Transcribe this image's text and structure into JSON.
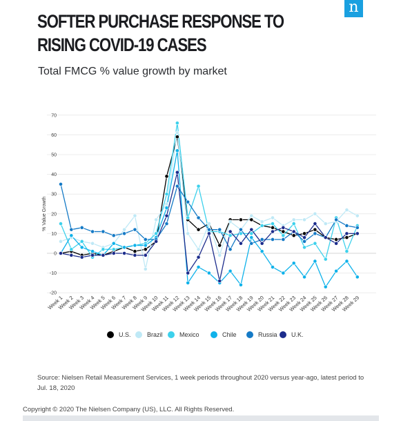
{
  "header": {
    "title": "SOFTER PURCHASE RESPONSE TO RISING COVID-19 CASES",
    "subtitle": "Total FMCG % value growth by market",
    "logo_letter": "n",
    "logo_color": "#1aa0e0"
  },
  "chart_data": {
    "type": "line",
    "title": "",
    "xlabel": "",
    "ylabel": "% Value Growth",
    "ylim": [
      -20,
      70
    ],
    "yticks": [
      -20,
      -10,
      0,
      10,
      20,
      30,
      40,
      50,
      60,
      70
    ],
    "ytick_labels": [
      "-20",
      "-10",
      "0",
      "10",
      "20",
      "30",
      "40",
      "50",
      "60",
      "70"
    ],
    "grid": "horizontal",
    "legend_position": "bottom",
    "categories": [
      "Week 1",
      "Week 2",
      "Week 3",
      "Week 4",
      "Week 5",
      "Week 6",
      "Week 7",
      "Week 8",
      "Week 9",
      "Week 10",
      "Week 11",
      "Week 12",
      "Week 13",
      "Week 14",
      "Week 15",
      "Week 16",
      "Week 17",
      "Week 18",
      "Week 19",
      "Week 20",
      "Week 21",
      "Week 22",
      "Week 23",
      "Week 24",
      "Week 25",
      "Week 26",
      "Week 27",
      "Week 28",
      "Week 29"
    ],
    "series": [
      {
        "name": "U.S.",
        "color": "#000000",
        "values": [
          0,
          1,
          -1,
          0,
          -1,
          1,
          3,
          1,
          2,
          6,
          39,
          59,
          17,
          12,
          15,
          4,
          17,
          17,
          17,
          14,
          13,
          11,
          9,
          10,
          12,
          8,
          7,
          8,
          10
        ]
      },
      {
        "name": "Brazil",
        "color": "#bfe9f6",
        "values": [
          6,
          8,
          6,
          5,
          3,
          5,
          12,
          19,
          -8,
          17,
          25,
          61,
          10,
          2,
          15,
          -1,
          16,
          12,
          19,
          16,
          18,
          14,
          17,
          17,
          20,
          15,
          16,
          22,
          19
        ]
      },
      {
        "name": "Mexico",
        "color": "#3dd1ec",
        "values": [
          15,
          2,
          6,
          -2,
          2,
          2,
          3,
          4,
          5,
          10,
          30,
          66,
          18,
          34,
          11,
          11,
          9,
          10,
          10,
          14,
          15,
          9,
          15,
          3,
          5,
          -3,
          18,
          1,
          14
        ]
      },
      {
        "name": "Chile",
        "color": "#0fb2ea",
        "values": [
          0,
          9,
          3,
          1,
          -1,
          5,
          3,
          4,
          4,
          8,
          23,
          52,
          -15,
          -7,
          -10,
          -15,
          -9,
          -16,
          8,
          1,
          -7,
          -10,
          -5,
          -12,
          -4,
          -17,
          -9,
          -4,
          -12
        ]
      },
      {
        "name": "Russia",
        "color": "#157ac6",
        "values": [
          35,
          12,
          13,
          11,
          11,
          9,
          10,
          12,
          7,
          7,
          15,
          34,
          26,
          18,
          12,
          12,
          2,
          12,
          5,
          7,
          7,
          7,
          11,
          6,
          10,
          8,
          17,
          14,
          13
        ]
      },
      {
        "name": "U.K.",
        "color": "#1c2c8c",
        "values": [
          0,
          -1,
          -2,
          -1,
          -1,
          0,
          0,
          -1,
          -1,
          6,
          19,
          41,
          -10,
          -2,
          10,
          -14,
          11,
          5,
          12,
          5,
          11,
          13,
          11,
          8,
          15,
          8,
          5,
          10,
          10
        ]
      }
    ]
  },
  "footer": {
    "source": "Source: Nielsen Retail Measurement Services, 1 week periods throughout 2020 versus year-ago, latest period to Jul. 18, 2020",
    "copyright": "Copyright © 2020 The Nielsen Company (US), LLC. All Rights Reserved."
  }
}
